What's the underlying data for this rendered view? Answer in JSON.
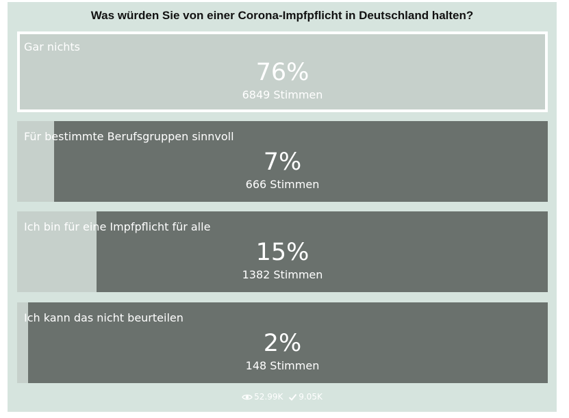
{
  "poll": {
    "question": "Was würden Sie von einer Corona-Impfpflicht in Deutschland halten?",
    "options": [
      {
        "label": "Gar nichts",
        "percent_text": "76%",
        "votes_text": "6849 Stimmen",
        "percent": 76,
        "selected": true
      },
      {
        "label": "Für bestimmte Berufsgruppen sinnvoll",
        "percent_text": "7%",
        "votes_text": "666 Stimmen",
        "percent": 7,
        "selected": false
      },
      {
        "label": "Ich bin für eine Impfpflicht für alle",
        "percent_text": "15%",
        "votes_text": "1382 Stimmen",
        "percent": 15,
        "selected": false
      },
      {
        "label": "Ich kann das nicht beurteilen",
        "percent_text": "2%",
        "votes_text": "148 Stimmen",
        "percent": 2,
        "selected": false
      }
    ],
    "stats": {
      "views": "52.99K",
      "views_icon": "eye-icon",
      "votes": "9.05K",
      "votes_icon": "checkmark-icon"
    }
  },
  "colors": {
    "background": "#d6e4de",
    "bar_dark": "#6a716d",
    "bar_light": "#c6d0cb",
    "selected_border": "#ffffff"
  }
}
